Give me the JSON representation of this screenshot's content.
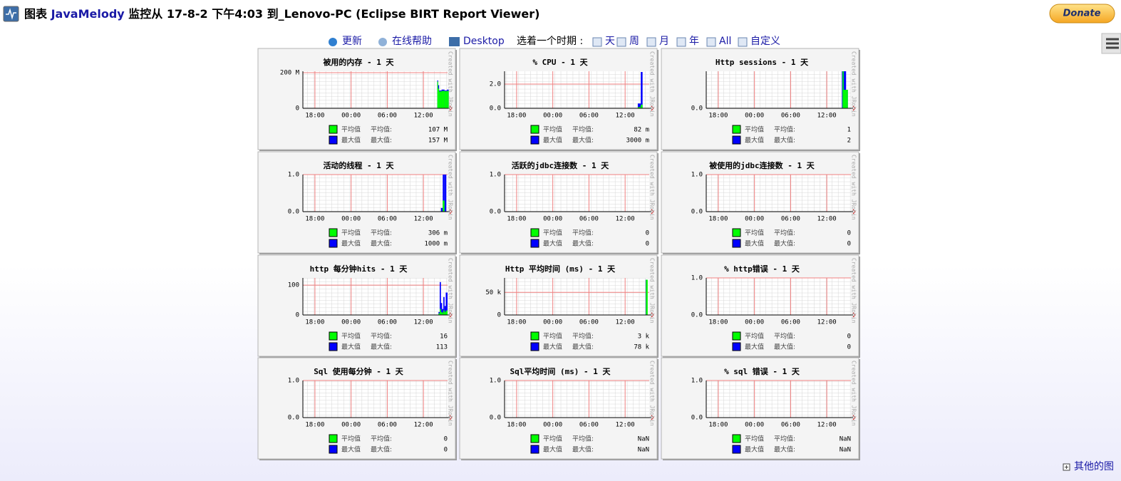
{
  "header": {
    "prefix": "图表",
    "app": "JavaMelody",
    "title": "监控从 17-8-2 下午4:03 到_Lenovo-PC (Eclipse BIRT Report Viewer)",
    "donate": "Donate"
  },
  "toolbar": {
    "refresh": "更新",
    "help": "在线帮助",
    "desktop": "Desktop",
    "period_label": "选着一个时期 :",
    "periods": [
      "天",
      "周",
      "月",
      "年",
      "All",
      "自定义"
    ]
  },
  "watermark": "Created with JRobin",
  "footer": "其他的图",
  "chart_data": [
    {
      "type": "area",
      "title": "被用的内存 - 1 天",
      "xlim": [
        0,
        24
      ],
      "xticks": [
        {
          "value": 2,
          "label": "18:00"
        },
        {
          "value": 8,
          "label": "00:00"
        },
        {
          "value": 14,
          "label": "06:00"
        },
        {
          "value": 20,
          "label": "12:00"
        }
      ],
      "ylim": [
        0,
        208
      ],
      "yticks": [
        {
          "value": 0,
          "label": "0"
        },
        {
          "value": 200,
          "label": "200 M"
        }
      ],
      "series": [
        {
          "name": "最大值",
          "color": "#0000ff",
          "stat_label": "最大值:",
          "stat_value": "157 M",
          "x": [
            22.3,
            22.4,
            22.6,
            23,
            23.5,
            23.9
          ],
          "values": [
            157,
            130,
            100,
            105,
            100,
            105
          ]
        },
        {
          "name": "平均值",
          "color": "#00ff00",
          "stat_label": "平均值:",
          "stat_value": "107 M",
          "x": [
            22.3,
            22.4,
            22.6,
            23,
            23.5,
            23.9
          ],
          "values": [
            150,
            110,
            95,
            98,
            96,
            98
          ]
        }
      ]
    },
    {
      "type": "area",
      "title": "% CPU - 1 天",
      "xlim": [
        0,
        24
      ],
      "xticks": [
        {
          "value": 2,
          "label": "18:00"
        },
        {
          "value": 8,
          "label": "00:00"
        },
        {
          "value": 14,
          "label": "06:00"
        },
        {
          "value": 20,
          "label": "12:00"
        }
      ],
      "ylim": [
        0,
        3.06
      ],
      "yticks": [
        {
          "value": 0,
          "label": "0.0"
        },
        {
          "value": 2,
          "label": "2.0"
        }
      ],
      "series": [
        {
          "name": "最大值",
          "color": "#0000ff",
          "stat_label": "最大值:",
          "stat_value": "3000 m",
          "x": [
            22.1,
            22.6
          ],
          "values": [
            0.4,
            3.0
          ]
        },
        {
          "name": "平均值",
          "color": "#00ff00",
          "stat_label": "平均值:",
          "stat_value": "82 m",
          "x": [
            22.1,
            22.6
          ],
          "values": [
            0.1,
            0.3
          ]
        }
      ]
    },
    {
      "type": "area",
      "title": "Http sessions - 1 天",
      "xlim": [
        0,
        24
      ],
      "xticks": [
        {
          "value": 2,
          "label": "18:00"
        },
        {
          "value": 8,
          "label": "00:00"
        },
        {
          "value": 14,
          "label": "06:00"
        },
        {
          "value": 20,
          "label": "12:00"
        }
      ],
      "ylim": [
        0,
        2
      ],
      "yticks": [
        {
          "value": 0,
          "label": "0.0"
        }
      ],
      "series": [
        {
          "name": "最大值",
          "color": "#0000ff",
          "stat_label": "最大值:",
          "stat_value": "2",
          "x": [
            22.5,
            22.8,
            23.2
          ],
          "values": [
            2,
            2,
            1
          ]
        },
        {
          "name": "平均值",
          "color": "#00ff00",
          "stat_label": "平均值:",
          "stat_value": "1",
          "x": [
            22.6,
            22.8,
            23.2
          ],
          "values": [
            2,
            1,
            1
          ]
        }
      ]
    },
    {
      "type": "area",
      "title": "活动的线程 - 1 天",
      "xlim": [
        0,
        24
      ],
      "xticks": [
        {
          "value": 2,
          "label": "18:00"
        },
        {
          "value": 8,
          "label": "00:00"
        },
        {
          "value": 14,
          "label": "06:00"
        },
        {
          "value": 20,
          "label": "12:00"
        }
      ],
      "ylim": [
        0,
        1
      ],
      "yticks": [
        {
          "value": 0,
          "label": "0.0"
        },
        {
          "value": 1,
          "label": "1.0"
        }
      ],
      "series": [
        {
          "name": "最大值",
          "color": "#0000ff",
          "stat_label": "最大值:",
          "stat_value": "1000 m",
          "x": [
            22.9,
            23.2,
            23.5
          ],
          "values": [
            0.1,
            1,
            1
          ]
        },
        {
          "name": "平均值",
          "color": "#00ff00",
          "stat_label": "平均值:",
          "stat_value": "306 m",
          "x": [
            23.2
          ],
          "values": [
            0.3
          ]
        }
      ]
    },
    {
      "type": "area",
      "title": "活跃的jdbc连接数 - 1 天",
      "xlim": [
        0,
        24
      ],
      "xticks": [
        {
          "value": 2,
          "label": "18:00"
        },
        {
          "value": 8,
          "label": "00:00"
        },
        {
          "value": 14,
          "label": "06:00"
        },
        {
          "value": 20,
          "label": "12:00"
        }
      ],
      "ylim": [
        0,
        1
      ],
      "yticks": [
        {
          "value": 0,
          "label": "0.0"
        },
        {
          "value": 1,
          "label": "1.0"
        }
      ],
      "series": [
        {
          "name": "最大值",
          "color": "#0000ff",
          "stat_label": "最大值:",
          "stat_value": "0",
          "x": [],
          "values": []
        },
        {
          "name": "平均值",
          "color": "#00ff00",
          "stat_label": "平均值:",
          "stat_value": "0",
          "x": [],
          "values": []
        }
      ]
    },
    {
      "type": "area",
      "title": "被使用的jdbc连接数 - 1 天",
      "xlim": [
        0,
        24
      ],
      "xticks": [
        {
          "value": 2,
          "label": "18:00"
        },
        {
          "value": 8,
          "label": "00:00"
        },
        {
          "value": 14,
          "label": "06:00"
        },
        {
          "value": 20,
          "label": "12:00"
        }
      ],
      "ylim": [
        0,
        1
      ],
      "yticks": [
        {
          "value": 0,
          "label": "0.0"
        },
        {
          "value": 1,
          "label": "1.0"
        }
      ],
      "series": [
        {
          "name": "最大值",
          "color": "#0000ff",
          "stat_label": "最大值:",
          "stat_value": "0",
          "x": [],
          "values": []
        },
        {
          "name": "平均值",
          "color": "#00ff00",
          "stat_label": "平均值:",
          "stat_value": "0",
          "x": [],
          "values": []
        }
      ]
    },
    {
      "type": "area",
      "title": "http 每分钟hits - 1 天",
      "xlim": [
        0,
        24
      ],
      "xticks": [
        {
          "value": 2,
          "label": "18:00"
        },
        {
          "value": 8,
          "label": "00:00"
        },
        {
          "value": 14,
          "label": "06:00"
        },
        {
          "value": 20,
          "label": "12:00"
        }
      ],
      "ylim": [
        0,
        124
      ],
      "yticks": [
        0,
        100
      ],
      "series": [
        {
          "name": "最大值",
          "color": "#0000ff",
          "stat_label": "最大值:",
          "stat_value": "113",
          "x": [
            22.5,
            22.7,
            22.9,
            23.1,
            23.3,
            23.5,
            23.7
          ],
          "values": [
            10,
            110,
            40,
            20,
            60,
            30,
            75
          ]
        },
        {
          "name": "平均值",
          "color": "#00ff00",
          "stat_label": "平均值:",
          "stat_value": "16",
          "x": [
            22.5,
            22.7,
            22.9,
            23.1,
            23.3,
            23.5,
            23.7
          ],
          "values": [
            5,
            20,
            10,
            8,
            15,
            10,
            15
          ]
        }
      ]
    },
    {
      "type": "area",
      "title": "Http 平均时间 (ms) - 1 天",
      "xlim": [
        0,
        24
      ],
      "xticks": [
        {
          "value": 2,
          "label": "18:00"
        },
        {
          "value": 8,
          "label": "00:00"
        },
        {
          "value": 14,
          "label": "06:00"
        },
        {
          "value": 20,
          "label": "12:00"
        }
      ],
      "ylim": [
        0,
        82
      ],
      "yticks": [
        0,
        {
          "value": 50,
          "label": "50 k"
        }
      ],
      "series": [
        {
          "name": "最大值",
          "color": "#0000ff",
          "stat_label": "最大值:",
          "stat_value": "78 k",
          "x": [
            23.4
          ],
          "values": [
            78
          ]
        },
        {
          "name": "平均值",
          "color": "#00ff00",
          "stat_label": "平均值:",
          "stat_value": "3 k",
          "x": [
            23.45
          ],
          "values": [
            78
          ]
        }
      ]
    },
    {
      "type": "area",
      "title": "% http错误 - 1 天",
      "xlim": [
        0,
        24
      ],
      "xticks": [
        {
          "value": 2,
          "label": "18:00"
        },
        {
          "value": 8,
          "label": "00:00"
        },
        {
          "value": 14,
          "label": "06:00"
        },
        {
          "value": 20,
          "label": "12:00"
        }
      ],
      "ylim": [
        0,
        1
      ],
      "yticks": [
        {
          "value": 0,
          "label": "0.0"
        },
        {
          "value": 1,
          "label": "1.0"
        }
      ],
      "series": [
        {
          "name": "最大值",
          "color": "#0000ff",
          "stat_label": "最大值:",
          "stat_value": "0",
          "x": [],
          "values": []
        },
        {
          "name": "平均值",
          "color": "#00ff00",
          "stat_label": "平均值:",
          "stat_value": "0",
          "x": [],
          "values": []
        }
      ]
    },
    {
      "type": "area",
      "title": "Sql 使用每分钟 - 1 天",
      "xlim": [
        0,
        24
      ],
      "xticks": [
        {
          "value": 2,
          "label": "18:00"
        },
        {
          "value": 8,
          "label": "00:00"
        },
        {
          "value": 14,
          "label": "06:00"
        },
        {
          "value": 20,
          "label": "12:00"
        }
      ],
      "ylim": [
        0,
        1
      ],
      "yticks": [
        {
          "value": 0,
          "label": "0.0"
        },
        {
          "value": 1,
          "label": "1.0"
        }
      ],
      "series": [
        {
          "name": "最大值",
          "color": "#0000ff",
          "stat_label": "最大值:",
          "stat_value": "0",
          "x": [],
          "values": []
        },
        {
          "name": "平均值",
          "color": "#00ff00",
          "stat_label": "平均值:",
          "stat_value": "0",
          "x": [],
          "values": []
        }
      ]
    },
    {
      "type": "area",
      "title": "Sql平均时间 (ms) - 1 天",
      "xlim": [
        0,
        24
      ],
      "xticks": [
        {
          "value": 2,
          "label": "18:00"
        },
        {
          "value": 8,
          "label": "00:00"
        },
        {
          "value": 14,
          "label": "06:00"
        },
        {
          "value": 20,
          "label": "12:00"
        }
      ],
      "ylim": [
        0,
        1
      ],
      "yticks": [
        {
          "value": 0,
          "label": "0.0"
        },
        {
          "value": 1,
          "label": "1.0"
        }
      ],
      "series": [
        {
          "name": "最大值",
          "color": "#0000ff",
          "stat_label": "最大值:",
          "stat_value": "NaN",
          "x": [],
          "values": []
        },
        {
          "name": "平均值",
          "color": "#00ff00",
          "stat_label": "平均值:",
          "stat_value": "NaN",
          "x": [],
          "values": []
        }
      ]
    },
    {
      "type": "area",
      "title": "% sql 错误 - 1 天",
      "xlim": [
        0,
        24
      ],
      "xticks": [
        {
          "value": 2,
          "label": "18:00"
        },
        {
          "value": 8,
          "label": "00:00"
        },
        {
          "value": 14,
          "label": "06:00"
        },
        {
          "value": 20,
          "label": "12:00"
        }
      ],
      "ylim": [
        0,
        1
      ],
      "yticks": [
        {
          "value": 0,
          "label": "0.0"
        },
        {
          "value": 1,
          "label": "1.0"
        }
      ],
      "series": [
        {
          "name": "最大值",
          "color": "#0000ff",
          "stat_label": "最大值:",
          "stat_value": "NaN",
          "x": [],
          "values": []
        },
        {
          "name": "平均值",
          "color": "#00ff00",
          "stat_label": "平均值:",
          "stat_value": "NaN",
          "x": [],
          "values": []
        }
      ]
    }
  ]
}
